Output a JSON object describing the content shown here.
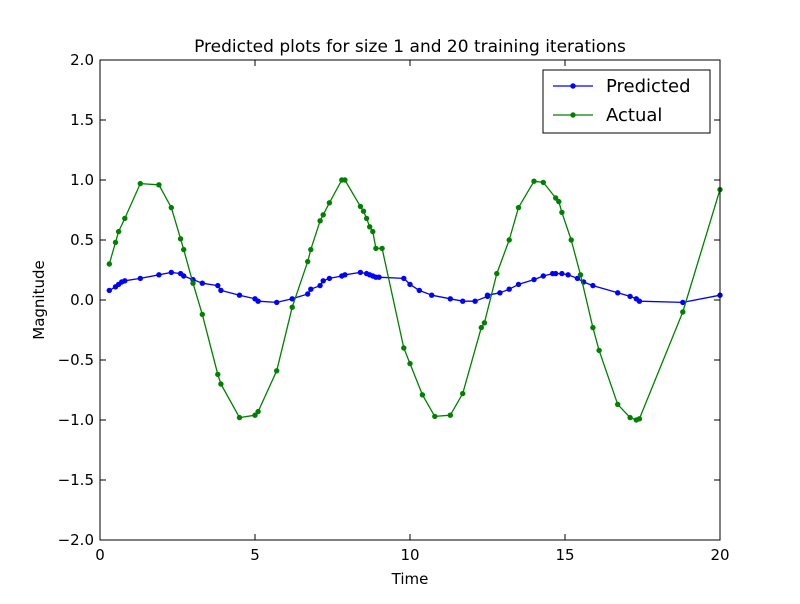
{
  "chart_data": {
    "type": "line",
    "title": "Predicted plots for size 1 and 20 training iterations",
    "xlabel": "Time",
    "ylabel": "Magnitude",
    "xlim": [
      0,
      20
    ],
    "ylim": [
      -2.0,
      2.0
    ],
    "xticks": [
      0,
      5,
      10,
      15,
      20
    ],
    "xtick_labels": [
      "0",
      "5",
      "10",
      "15",
      "20"
    ],
    "yticks": [
      2.0,
      1.5,
      1.0,
      0.5,
      0.0,
      -0.5,
      -1.0,
      -1.5,
      -2.0
    ],
    "ytick_labels": [
      "2.0",
      "1.5",
      "1.0",
      "0.5",
      "0.0",
      "−0.5",
      "−1.0",
      "−1.5",
      "−2.0"
    ],
    "grid": false,
    "legend_position": "top-right",
    "series": [
      {
        "name": "Predicted",
        "color": "#0000ff",
        "marker": "circle",
        "x": [
          0.3,
          0.5,
          0.6,
          0.7,
          0.8,
          1.3,
          1.9,
          2.3,
          2.6,
          2.7,
          3.0,
          3.3,
          3.8,
          3.9,
          4.5,
          5.0,
          5.1,
          5.7,
          6.2,
          6.7,
          6.8,
          7.1,
          7.2,
          7.4,
          7.8,
          7.9,
          8.4,
          8.6,
          8.7,
          8.8,
          8.9,
          9.0,
          9.8,
          10.0,
          10.3,
          10.7,
          11.3,
          11.7,
          12.1,
          12.5,
          12.5,
          12.9,
          13.2,
          13.5,
          14.0,
          14.3,
          14.6,
          14.7,
          14.9,
          15.1,
          15.4,
          15.6,
          15.9,
          16.7,
          17.1,
          17.3,
          17.4,
          18.8,
          20.0
        ],
        "y": [
          0.08,
          0.11,
          0.13,
          0.15,
          0.16,
          0.18,
          0.21,
          0.23,
          0.22,
          0.2,
          0.17,
          0.14,
          0.12,
          0.08,
          0.04,
          0.01,
          -0.01,
          -0.02,
          0.01,
          0.05,
          0.09,
          0.12,
          0.16,
          0.18,
          0.2,
          0.21,
          0.23,
          0.22,
          0.21,
          0.2,
          0.19,
          0.19,
          0.18,
          0.13,
          0.08,
          0.04,
          0.01,
          -0.01,
          -0.01,
          0.03,
          0.04,
          0.06,
          0.09,
          0.13,
          0.17,
          0.2,
          0.22,
          0.22,
          0.22,
          0.21,
          0.18,
          0.15,
          0.12,
          0.06,
          0.03,
          0.01,
          -0.01,
          -0.02,
          0.04
        ]
      },
      {
        "name": "Actual",
        "color": "#008000",
        "marker": "circle",
        "x": [
          0.3,
          0.5,
          0.6,
          0.8,
          1.3,
          1.9,
          2.3,
          2.6,
          2.7,
          3.0,
          3.3,
          3.8,
          3.9,
          4.5,
          5.0,
          5.1,
          5.7,
          6.2,
          6.7,
          6.8,
          7.1,
          7.2,
          7.4,
          7.8,
          7.9,
          8.4,
          8.5,
          8.6,
          8.7,
          8.8,
          8.9,
          9.1,
          9.8,
          10.0,
          10.4,
          10.8,
          11.3,
          11.7,
          12.3,
          12.4,
          12.8,
          13.2,
          13.5,
          14.0,
          14.3,
          14.7,
          14.8,
          14.9,
          15.2,
          15.5,
          15.9,
          16.1,
          16.7,
          17.1,
          17.3,
          17.4,
          18.8,
          20.0
        ],
        "y": [
          0.3,
          0.48,
          0.57,
          0.68,
          0.97,
          0.96,
          0.77,
          0.51,
          0.42,
          0.14,
          -0.12,
          -0.62,
          -0.7,
          -0.98,
          -0.96,
          -0.93,
          -0.59,
          -0.06,
          0.32,
          0.42,
          0.66,
          0.71,
          0.81,
          1.0,
          1.0,
          0.78,
          0.74,
          0.68,
          0.61,
          0.57,
          0.43,
          0.43,
          -0.4,
          -0.53,
          -0.79,
          -0.97,
          -0.96,
          -0.78,
          -0.23,
          -0.19,
          0.22,
          0.5,
          0.77,
          0.99,
          0.98,
          0.85,
          0.82,
          0.73,
          0.5,
          0.21,
          -0.23,
          -0.42,
          -0.87,
          -0.98,
          -1.0,
          -0.99,
          -0.1,
          0.92
        ]
      }
    ]
  }
}
